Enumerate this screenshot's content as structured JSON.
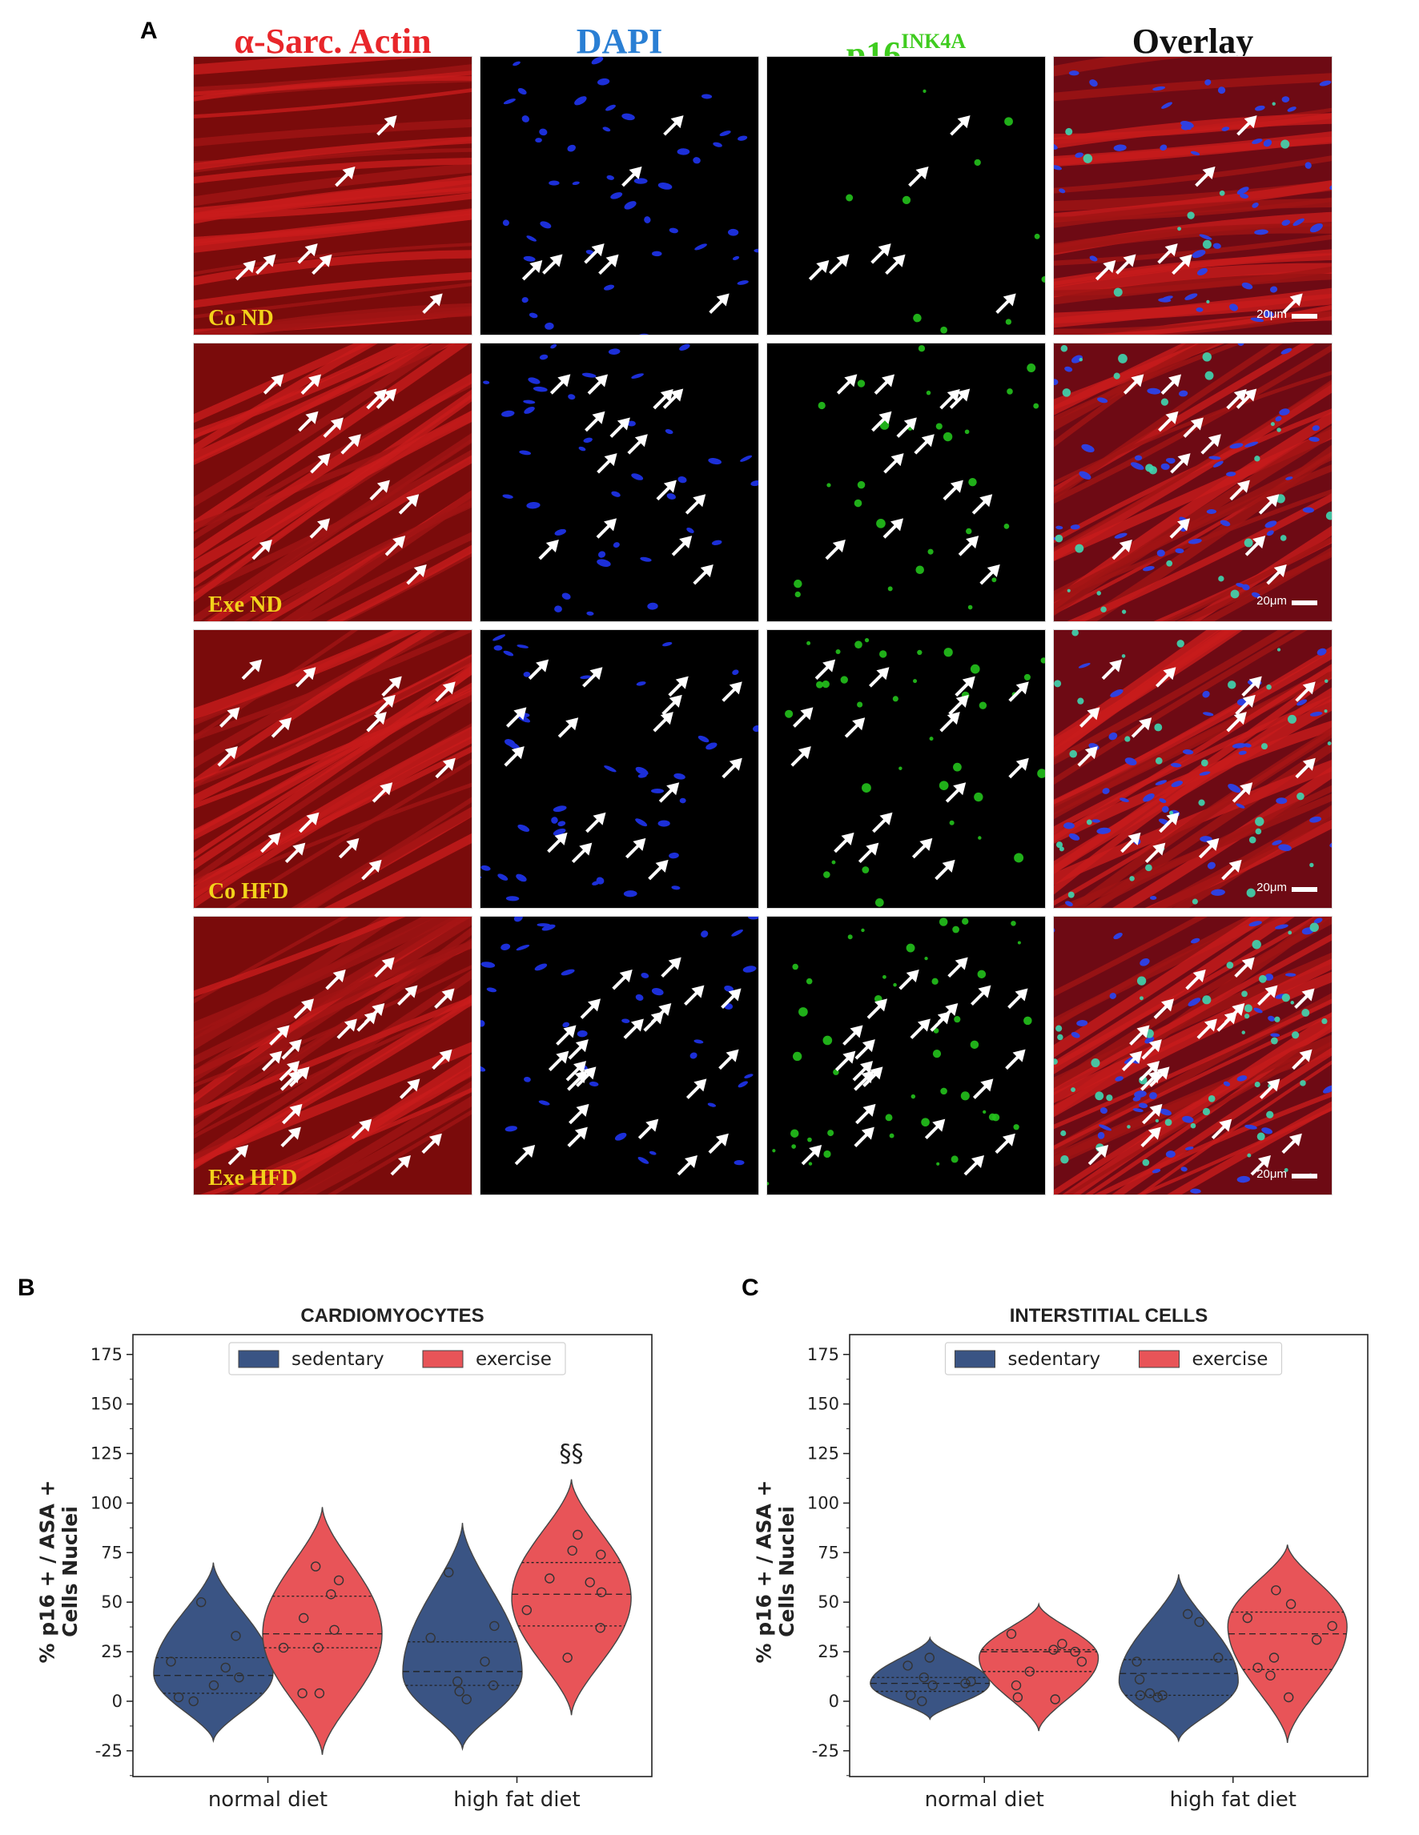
{
  "panel_labels": {
    "a": "A",
    "b": "B",
    "c": "C"
  },
  "panel_a": {
    "columns": [
      {
        "label": "α-Sarc. Actin",
        "sup": "",
        "color": "#e8262a"
      },
      {
        "label": "DAPI",
        "sup": "",
        "color": "#2a7fd4"
      },
      {
        "label": "p16",
        "sup": "INK4A",
        "color": "#3fcc1f"
      },
      {
        "label": "Overlay",
        "sup": "",
        "color": "#111111"
      }
    ],
    "rows": [
      {
        "label": "Co ND"
      },
      {
        "label": "Exe ND"
      },
      {
        "label": "Co HFD"
      },
      {
        "label": "Exe HFD"
      }
    ],
    "scale_text": "20μm",
    "label_color": "#f2d21b"
  },
  "chart_data": [
    {
      "type": "violin",
      "title": "CARDIOMYOCYTES",
      "ylabel": [
        "% p16 + / ASA +",
        "Cells Nuclei"
      ],
      "ylim": [
        -38,
        185
      ],
      "yticks": [
        -25,
        0,
        25,
        50,
        75,
        100,
        125,
        150,
        175
      ],
      "categories": [
        "normal diet",
        "high fat diet"
      ],
      "legend": {
        "position": "top-center"
      },
      "series": [
        {
          "name": "sedentary",
          "color": "#3a5484",
          "groups": [
            {
              "range": [
                -20,
                70
              ],
              "mode": 14,
              "quartiles": [
                4,
                13,
                22
              ],
              "points": [
                33,
                50,
                20,
                17,
                12,
                8,
                2,
                0
              ]
            },
            {
              "range": [
                -24,
                90
              ],
              "mode": 14,
              "quartiles": [
                8,
                15,
                30
              ],
              "points": [
                65,
                38,
                32,
                20,
                10,
                8,
                5,
                1
              ]
            }
          ]
        },
        {
          "name": "exercise",
          "color": "#e85458",
          "groups": [
            {
              "range": [
                -27,
                98
              ],
              "mode": 34,
              "quartiles": [
                27,
                34,
                53
              ],
              "points": [
                68,
                61,
                54,
                42,
                36,
                27,
                27,
                4,
                4
              ]
            },
            {
              "range": [
                -7,
                112
              ],
              "mode": 52,
              "quartiles": [
                38,
                54,
                70
              ],
              "points": [
                84,
                76,
                74,
                62,
                60,
                55,
                46,
                37,
                22
              ]
            }
          ]
        }
      ],
      "annotations": [
        {
          "text": "§§",
          "category": "high fat diet",
          "series": "exercise",
          "y": 125
        }
      ]
    },
    {
      "type": "violin",
      "title": "INTERSTITIAL CELLS",
      "ylabel": [
        "% p16 + / ASA +",
        "Cells Nuclei"
      ],
      "ylim": [
        -38,
        185
      ],
      "yticks": [
        -25,
        0,
        25,
        50,
        75,
        100,
        125,
        150,
        175
      ],
      "categories": [
        "normal diet",
        "high fat diet"
      ],
      "legend": {
        "position": "top-center"
      },
      "series": [
        {
          "name": "sedentary",
          "color": "#3a5484",
          "groups": [
            {
              "range": [
                -9,
                32
              ],
              "mode": 9,
              "quartiles": [
                5,
                9,
                12
              ],
              "points": [
                22,
                18,
                12,
                10,
                9,
                8,
                3,
                0
              ]
            },
            {
              "range": [
                -20,
                64
              ],
              "mode": 10,
              "quartiles": [
                3,
                14,
                21
              ],
              "points": [
                44,
                40,
                22,
                20,
                11,
                4,
                3,
                3,
                2
              ]
            }
          ]
        },
        {
          "name": "exercise",
          "color": "#e85458",
          "groups": [
            {
              "range": [
                -15,
                49
              ],
              "mode": 22,
              "quartiles": [
                15,
                25,
                26
              ],
              "points": [
                34,
                29,
                26,
                25,
                20,
                15,
                8,
                2,
                1
              ]
            },
            {
              "range": [
                -21,
                79
              ],
              "mode": 38,
              "quartiles": [
                16,
                34,
                45
              ],
              "points": [
                56,
                49,
                42,
                38,
                31,
                22,
                17,
                13,
                2
              ]
            }
          ]
        }
      ],
      "annotations": []
    }
  ]
}
